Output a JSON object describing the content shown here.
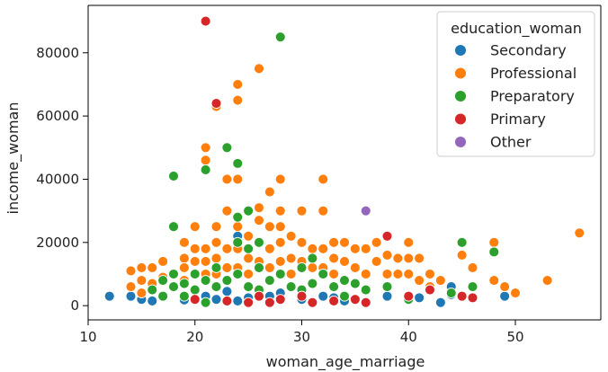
{
  "chart_data": {
    "type": "scatter",
    "xlabel": "woman_age_marriage",
    "ylabel": "income_woman",
    "xlim": [
      10,
      58
    ],
    "ylim": [
      -4500,
      95000
    ],
    "x_ticks": [
      10,
      20,
      30,
      40,
      50
    ],
    "y_ticks": [
      0,
      20000,
      40000,
      60000,
      80000
    ],
    "x_tick_labels": [
      "10",
      "20",
      "30",
      "40",
      "50"
    ],
    "y_tick_labels": [
      "0",
      "20000",
      "40000",
      "60000",
      "80000"
    ],
    "grid": false,
    "legend": {
      "title": "education_woman",
      "placement": "top-right"
    },
    "series": [
      {
        "name": "Secondary",
        "color": "#1f77b4",
        "points": [
          [
            12,
            3000
          ],
          [
            14,
            3000
          ],
          [
            15,
            2000
          ],
          [
            16,
            1500
          ],
          [
            19,
            1800
          ],
          [
            21,
            3000
          ],
          [
            22,
            2000
          ],
          [
            23,
            4500
          ],
          [
            24,
            22000
          ],
          [
            24,
            1500
          ],
          [
            25,
            2500
          ],
          [
            27,
            3000
          ],
          [
            28,
            4000
          ],
          [
            30,
            2000
          ],
          [
            32,
            3000
          ],
          [
            33,
            2500
          ],
          [
            35,
            2000
          ],
          [
            38,
            3000
          ],
          [
            40,
            2500
          ],
          [
            41,
            2500
          ],
          [
            43,
            1000
          ],
          [
            44,
            6000
          ],
          [
            44,
            3500
          ],
          [
            49,
            3000
          ],
          [
            34,
            1500
          ]
        ]
      },
      {
        "name": "Professional",
        "color": "#ff7f0e",
        "points": [
          [
            14,
            11000
          ],
          [
            14,
            6000
          ],
          [
            15,
            12000
          ],
          [
            15,
            8000
          ],
          [
            15,
            4000
          ],
          [
            16,
            12000
          ],
          [
            16,
            7000
          ],
          [
            17,
            14000
          ],
          [
            17,
            9000
          ],
          [
            18,
            10000
          ],
          [
            18,
            6000
          ],
          [
            19,
            20000
          ],
          [
            19,
            15000
          ],
          [
            19,
            12000
          ],
          [
            19,
            8000
          ],
          [
            20,
            25000
          ],
          [
            20,
            18000
          ],
          [
            20,
            14000
          ],
          [
            20,
            10000
          ],
          [
            21,
            50000
          ],
          [
            21,
            46000
          ],
          [
            21,
            18000
          ],
          [
            21,
            14000
          ],
          [
            21,
            10000
          ],
          [
            22,
            63000
          ],
          [
            22,
            25000
          ],
          [
            22,
            20000
          ],
          [
            22,
            15000
          ],
          [
            22,
            10000
          ],
          [
            23,
            40000
          ],
          [
            23,
            30000
          ],
          [
            23,
            18000
          ],
          [
            23,
            12000
          ],
          [
            24,
            70000
          ],
          [
            24,
            65000
          ],
          [
            24,
            40000
          ],
          [
            24,
            25000
          ],
          [
            24,
            18000
          ],
          [
            24,
            12000
          ],
          [
            25,
            22000
          ],
          [
            25,
            15000
          ],
          [
            25,
            10000
          ],
          [
            26,
            75000
          ],
          [
            26,
            31000
          ],
          [
            26,
            27000
          ],
          [
            26,
            20000
          ],
          [
            26,
            14000
          ],
          [
            27,
            36000
          ],
          [
            27,
            25000
          ],
          [
            27,
            18000
          ],
          [
            27,
            12000
          ],
          [
            28,
            40000
          ],
          [
            28,
            30000
          ],
          [
            28,
            25000
          ],
          [
            28,
            20000
          ],
          [
            28,
            14000
          ],
          [
            29,
            22000
          ],
          [
            29,
            15000
          ],
          [
            29,
            10000
          ],
          [
            30,
            30000
          ],
          [
            30,
            20000
          ],
          [
            30,
            14000
          ],
          [
            31,
            18000
          ],
          [
            31,
            12000
          ],
          [
            32,
            40000
          ],
          [
            32,
            30000
          ],
          [
            32,
            18000
          ],
          [
            32,
            12000
          ],
          [
            33,
            20000
          ],
          [
            33,
            15000
          ],
          [
            33,
            10000
          ],
          [
            34,
            20000
          ],
          [
            34,
            14000
          ],
          [
            35,
            18000
          ],
          [
            35,
            12000
          ],
          [
            36,
            18000
          ],
          [
            36,
            10000
          ],
          [
            37,
            20000
          ],
          [
            37,
            14000
          ],
          [
            38,
            16000
          ],
          [
            38,
            10000
          ],
          [
            39,
            15000
          ],
          [
            39,
            10000
          ],
          [
            40,
            20000
          ],
          [
            40,
            15000
          ],
          [
            40,
            10000
          ],
          [
            41,
            15000
          ],
          [
            41,
            8000
          ],
          [
            42,
            10000
          ],
          [
            42,
            6000
          ],
          [
            43,
            8000
          ],
          [
            45,
            16000
          ],
          [
            46,
            12000
          ],
          [
            48,
            20000
          ],
          [
            48,
            8000
          ],
          [
            49,
            6000
          ],
          [
            50,
            4000
          ],
          [
            53,
            8000
          ],
          [
            56,
            23000
          ]
        ]
      },
      {
        "name": "Preparatory",
        "color": "#2ca02c",
        "points": [
          [
            16,
            5000
          ],
          [
            17,
            8000
          ],
          [
            17,
            3000
          ],
          [
            18,
            41000
          ],
          [
            18,
            25000
          ],
          [
            18,
            10000
          ],
          [
            18,
            6000
          ],
          [
            19,
            7000
          ],
          [
            19,
            3000
          ],
          [
            20,
            10000
          ],
          [
            20,
            5000
          ],
          [
            21,
            43000
          ],
          [
            21,
            8000
          ],
          [
            21,
            1000
          ],
          [
            22,
            12000
          ],
          [
            22,
            6000
          ],
          [
            23,
            50000
          ],
          [
            23,
            8000
          ],
          [
            24,
            45000
          ],
          [
            24,
            28000
          ],
          [
            24,
            20000
          ],
          [
            24,
            10000
          ],
          [
            25,
            30000
          ],
          [
            25,
            18000
          ],
          [
            25,
            6000
          ],
          [
            26,
            20000
          ],
          [
            26,
            12000
          ],
          [
            26,
            5000
          ],
          [
            27,
            8000
          ],
          [
            28,
            85000
          ],
          [
            28,
            10000
          ],
          [
            29,
            6000
          ],
          [
            30,
            12000
          ],
          [
            30,
            5000
          ],
          [
            31,
            15000
          ],
          [
            31,
            7000
          ],
          [
            32,
            10000
          ],
          [
            33,
            6000
          ],
          [
            34,
            8000
          ],
          [
            34,
            3000
          ],
          [
            35,
            7000
          ],
          [
            36,
            5000
          ],
          [
            38,
            6000
          ],
          [
            40,
            2000
          ],
          [
            42,
            5000
          ],
          [
            44,
            4000
          ],
          [
            45,
            20000
          ],
          [
            46,
            6000
          ],
          [
            48,
            17000
          ]
        ]
      },
      {
        "name": "Primary",
        "color": "#d62728",
        "points": [
          [
            21,
            90000
          ],
          [
            22,
            64000
          ],
          [
            20,
            2000
          ],
          [
            23,
            1500
          ],
          [
            25,
            1000
          ],
          [
            26,
            3000
          ],
          [
            27,
            1000
          ],
          [
            28,
            2000
          ],
          [
            30,
            3000
          ],
          [
            31,
            1000
          ],
          [
            33,
            1500
          ],
          [
            35,
            2000
          ],
          [
            36,
            1000
          ],
          [
            38,
            22000
          ],
          [
            40,
            3000
          ],
          [
            42,
            5000
          ],
          [
            45,
            3000
          ],
          [
            46,
            2500
          ]
        ]
      },
      {
        "name": "Other",
        "color": "#9467bd",
        "points": [
          [
            36,
            30000
          ]
        ]
      }
    ]
  }
}
